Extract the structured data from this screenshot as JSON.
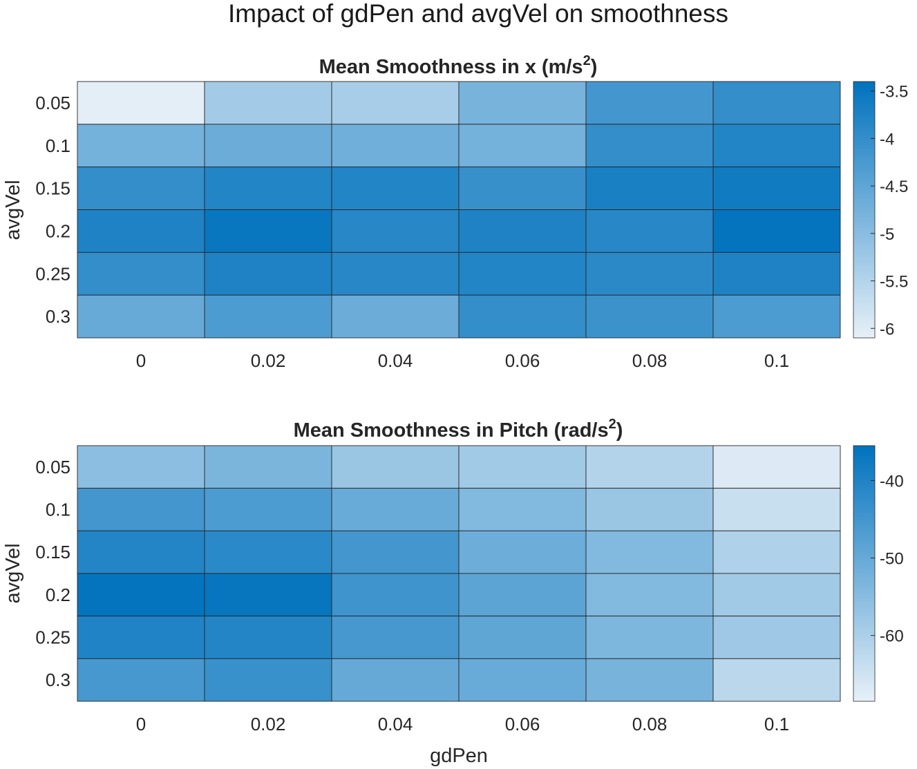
{
  "figure": {
    "suptitle": "Impact of gdPen and avgVel on smoothness",
    "xlabel": "gdPen"
  },
  "colors": {
    "low": "#e7f0f8",
    "high": "#0072bd",
    "grid": "#262626"
  },
  "chart_data": [
    {
      "type": "heatmap",
      "title_main": "Mean Smoothness in x (m/s",
      "title_sup": "2",
      "title_end": ")",
      "xlabel": "",
      "ylabel": "avgVel",
      "x": [
        "0",
        "0.02",
        "0.04",
        "0.06",
        "0.08",
        "0.1"
      ],
      "y": [
        "0.05",
        "0.1",
        "0.15",
        "0.2",
        "0.25",
        "0.3"
      ],
      "values": [
        [
          -6.05,
          -5.3,
          -5.35,
          -4.8,
          -4.2,
          -4.0
        ],
        [
          -4.75,
          -4.65,
          -4.7,
          -4.75,
          -4.0,
          -3.8
        ],
        [
          -4.0,
          -3.8,
          -3.8,
          -4.05,
          -3.7,
          -3.6
        ],
        [
          -3.75,
          -3.5,
          -3.85,
          -3.75,
          -3.85,
          -3.45
        ],
        [
          -4.0,
          -3.75,
          -3.85,
          -3.8,
          -3.9,
          -3.75
        ],
        [
          -4.6,
          -4.3,
          -4.65,
          -4.0,
          -4.1,
          -4.3
        ]
      ],
      "clim": [
        -6.1,
        -3.4
      ],
      "colorbar_ticks": [
        "-3.5",
        "-4",
        "-4.5",
        "-5",
        "-5.5",
        "-6"
      ],
      "colorbar_tick_values": [
        -3.5,
        -4,
        -4.5,
        -5,
        -5.5,
        -6
      ]
    },
    {
      "type": "heatmap",
      "title_main": "Mean Smoothness in Pitch (rad/s",
      "title_sup": "2",
      "title_end": ")",
      "xlabel": "gdPen",
      "ylabel": "avgVel",
      "x": [
        "0",
        "0.02",
        "0.04",
        "0.06",
        "0.08",
        "0.1"
      ],
      "y": [
        "0.05",
        "0.1",
        "0.15",
        "0.2",
        "0.25",
        "0.3"
      ],
      "values": [
        [
          -55.5,
          -53.0,
          -57.5,
          -58.5,
          -61.0,
          -67.0
        ],
        [
          -45.0,
          -46.5,
          -50.5,
          -54.0,
          -57.5,
          -64.0
        ],
        [
          -40.5,
          -41.5,
          -45.0,
          -51.0,
          -54.0,
          -60.5
        ],
        [
          -36.0,
          -36.5,
          -44.5,
          -48.5,
          -54.0,
          -58.5
        ],
        [
          -40.0,
          -40.5,
          -45.5,
          -49.0,
          -53.5,
          -58.0
        ],
        [
          -45.5,
          -43.5,
          -50.0,
          -50.5,
          -52.5,
          -62.0
        ]
      ],
      "clim": [
        -68.5,
        -35.5
      ],
      "colorbar_ticks": [
        "-40",
        "-50",
        "-60"
      ],
      "colorbar_tick_values": [
        -40,
        -50,
        -60
      ]
    }
  ]
}
